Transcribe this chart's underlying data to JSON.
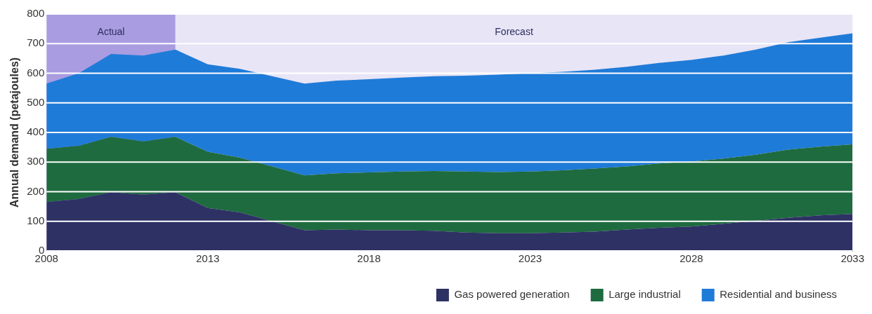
{
  "chart_data": {
    "type": "area",
    "stacked": true,
    "ylabel": "Annual demand (petajoules)",
    "x": [
      2008,
      2009,
      2010,
      2011,
      2012,
      2013,
      2014,
      2015,
      2016,
      2017,
      2018,
      2019,
      2020,
      2021,
      2022,
      2023,
      2024,
      2025,
      2026,
      2027,
      2028,
      2029,
      2030,
      2031,
      2032,
      2033
    ],
    "series": [
      {
        "name": "Gas powered generation",
        "color": "#2e3164",
        "values": [
          165,
          175,
          198,
          190,
          198,
          145,
          130,
          100,
          70,
          72,
          70,
          70,
          68,
          62,
          60,
          60,
          62,
          65,
          72,
          78,
          82,
          92,
          102,
          112,
          120,
          125
        ]
      },
      {
        "name": "Large industrial",
        "color": "#1e6b3f",
        "values": [
          180,
          180,
          187,
          180,
          187,
          190,
          185,
          185,
          185,
          190,
          195,
          198,
          202,
          206,
          206,
          208,
          210,
          213,
          213,
          217,
          220,
          220,
          223,
          230,
          232,
          235
        ]
      },
      {
        "name": "Residential and business",
        "color": "#1f7bd8",
        "values": [
          220,
          245,
          280,
          290,
          295,
          295,
          300,
          305,
          310,
          313,
          315,
          317,
          320,
          324,
          329,
          332,
          333,
          334,
          337,
          340,
          343,
          348,
          355,
          363,
          368,
          375
        ]
      }
    ],
    "xlim": [
      2008,
      2033
    ],
    "xticks": [
      2008,
      2013,
      2018,
      2023,
      2028,
      2033
    ],
    "ylim": [
      0,
      800
    ],
    "yticks": [
      0,
      100,
      200,
      300,
      400,
      500,
      600,
      700,
      800
    ],
    "bands": [
      {
        "axis": "x",
        "from": 2008,
        "to": 2012,
        "label": "Actual",
        "color": "#a99ce0"
      },
      {
        "axis": "x",
        "from": 2012,
        "to": 2033,
        "label": "Forecast",
        "color": "#e8e5f6"
      }
    ],
    "grid": "y",
    "legend": "bottom right"
  }
}
